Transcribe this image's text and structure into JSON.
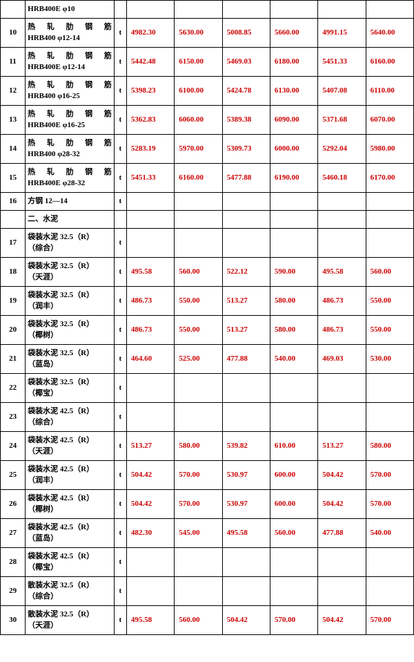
{
  "colors": {
    "value_text": "#cc0000",
    "border": "#000000",
    "background": "#ffffff",
    "text": "#000000"
  },
  "columns": {
    "index_width": 36,
    "name_width": 128,
    "unit_width": 18,
    "value_width": 69,
    "value_count": 6
  },
  "rows": [
    {
      "idx": "",
      "name_line1": "HRB400E φ10",
      "name_line2": "",
      "unit": "",
      "values": [
        "",
        "",
        "",
        "",
        "",
        ""
      ],
      "tall": false,
      "justify": false
    },
    {
      "idx": "10",
      "name_line1": "热 轧 肋 钢 筋",
      "name_line2": "HRB400 φ12-14",
      "unit": "t",
      "values": [
        "4982.30",
        "5630.00",
        "5008.85",
        "5660.00",
        "4991.15",
        "5640.00"
      ],
      "tall": true,
      "justify": true
    },
    {
      "idx": "11",
      "name_line1": "热 轧 肋 钢 筋",
      "name_line2": "HRB400E φ12-14",
      "unit": "t",
      "values": [
        "5442.48",
        "6150.00",
        "5469.03",
        "6180.00",
        "5451.33",
        "6160.00"
      ],
      "tall": true,
      "justify": true
    },
    {
      "idx": "12",
      "name_line1": "热 轧 肋 钢 筋",
      "name_line2": "HRB400 φ16-25",
      "unit": "t",
      "values": [
        "5398.23",
        "6100.00",
        "5424.78",
        "6130.00",
        "5407.08",
        "6110.00"
      ],
      "tall": true,
      "justify": true
    },
    {
      "idx": "13",
      "name_line1": "热 轧 肋 钢 筋",
      "name_line2": "HRB400E φ16-25",
      "unit": "t",
      "values": [
        "5362.83",
        "6060.00",
        "5389.38",
        "6090.00",
        "5371.68",
        "6070.00"
      ],
      "tall": true,
      "justify": true
    },
    {
      "idx": "14",
      "name_line1": "热 轧 肋 钢 筋",
      "name_line2": "HRB400 φ28-32",
      "unit": "t",
      "values": [
        "5283.19",
        "5970.00",
        "5309.73",
        "6000.00",
        "5292.04",
        "5980.00"
      ],
      "tall": true,
      "justify": true
    },
    {
      "idx": "15",
      "name_line1": "热 轧 肋 钢 筋",
      "name_line2": "HRB400E φ28-32",
      "unit": "t",
      "values": [
        "5451.33",
        "6160.00",
        "5477.88",
        "6190.00",
        "5460.18",
        "6170.00"
      ],
      "tall": true,
      "justify": true
    },
    {
      "idx": "16",
      "name_line1": "方钢 12—14",
      "name_line2": "",
      "unit": "t",
      "values": [
        "",
        "",
        "",
        "",
        "",
        ""
      ],
      "tall": false,
      "justify": false
    },
    {
      "idx": "",
      "name_line1": "二、水泥",
      "name_line2": "",
      "unit": "",
      "values": [
        "",
        "",
        "",
        "",
        "",
        ""
      ],
      "tall": false,
      "justify": false
    },
    {
      "idx": "17",
      "name_line1": "袋装水泥 32.5（R）",
      "name_line2": "（综合）",
      "unit": "t",
      "values": [
        "",
        "",
        "",
        "",
        "",
        ""
      ],
      "tall": true,
      "justify": false
    },
    {
      "idx": "18",
      "name_line1": "袋装水泥 32.5（R）",
      "name_line2": "（天涯）",
      "unit": "t",
      "values": [
        "495.58",
        "560.00",
        "522.12",
        "590.00",
        "495.58",
        "560.00"
      ],
      "tall": true,
      "justify": false
    },
    {
      "idx": "19",
      "name_line1": "袋装水泥 32.5（R）",
      "name_line2": "（润丰）",
      "unit": "t",
      "values": [
        "486.73",
        "550.00",
        "513.27",
        "580.00",
        "486.73",
        "550.00"
      ],
      "tall": true,
      "justify": false
    },
    {
      "idx": "20",
      "name_line1": "袋装水泥 32.5（R）",
      "name_line2": "（椰树）",
      "unit": "t",
      "values": [
        "486.73",
        "550.00",
        "513.27",
        "580.00",
        "486.73",
        "550.00"
      ],
      "tall": true,
      "justify": false
    },
    {
      "idx": "21",
      "name_line1": "袋装水泥 32.5（R）",
      "name_line2": "（蓝岛）",
      "unit": "t",
      "values": [
        "464.60",
        "525.00",
        "477.88",
        "540.00",
        "469.03",
        "530.00"
      ],
      "tall": true,
      "justify": false
    },
    {
      "idx": "22",
      "name_line1": "袋装水泥 32.5（R）",
      "name_line2": "（椰宝）",
      "unit": "t",
      "values": [
        "",
        "",
        "",
        "",
        "",
        ""
      ],
      "tall": true,
      "justify": false
    },
    {
      "idx": "23",
      "name_line1": "袋装水泥 42.5（R）",
      "name_line2": "（综合）",
      "unit": "t",
      "values": [
        "",
        "",
        "",
        "",
        "",
        ""
      ],
      "tall": true,
      "justify": false
    },
    {
      "idx": "24",
      "name_line1": "袋装水泥 42.5（R）",
      "name_line2": "（天涯）",
      "unit": "t",
      "values": [
        "513.27",
        "580.00",
        "539.82",
        "610.00",
        "513.27",
        "580.00"
      ],
      "tall": true,
      "justify": false
    },
    {
      "idx": "25",
      "name_line1": "袋装水泥 42.5（R）",
      "name_line2": "（润丰）",
      "unit": "t",
      "values": [
        "504.42",
        "570.00",
        "530.97",
        "600.00",
        "504.42",
        "570.00"
      ],
      "tall": true,
      "justify": false
    },
    {
      "idx": "26",
      "name_line1": "袋装水泥 42.5（R）",
      "name_line2": "（椰树）",
      "unit": "t",
      "values": [
        "504.42",
        "570.00",
        "530.97",
        "600.00",
        "504.42",
        "570.00"
      ],
      "tall": true,
      "justify": false
    },
    {
      "idx": "27",
      "name_line1": "袋装水泥 42.5（R）",
      "name_line2": "（蓝岛）",
      "unit": "t",
      "values": [
        "482.30",
        "545.00",
        "495.58",
        "560.00",
        "477.88",
        "540.00"
      ],
      "tall": true,
      "justify": false
    },
    {
      "idx": "28",
      "name_line1": "袋装水泥 42.5（R）",
      "name_line2": "（椰宝）",
      "unit": "t",
      "values": [
        "",
        "",
        "",
        "",
        "",
        ""
      ],
      "tall": true,
      "justify": false
    },
    {
      "idx": "29",
      "name_line1": "散装水泥 32.5（R）",
      "name_line2": "（综合）",
      "unit": "t",
      "values": [
        "",
        "",
        "",
        "",
        "",
        ""
      ],
      "tall": true,
      "justify": false
    },
    {
      "idx": "30",
      "name_line1": "散装水泥 32.5（R）",
      "name_line2": "（天涯）",
      "unit": "t",
      "values": [
        "495.58",
        "560.00",
        "504.42",
        "570.00",
        "504.42",
        "570.00"
      ],
      "tall": true,
      "justify": false
    }
  ]
}
